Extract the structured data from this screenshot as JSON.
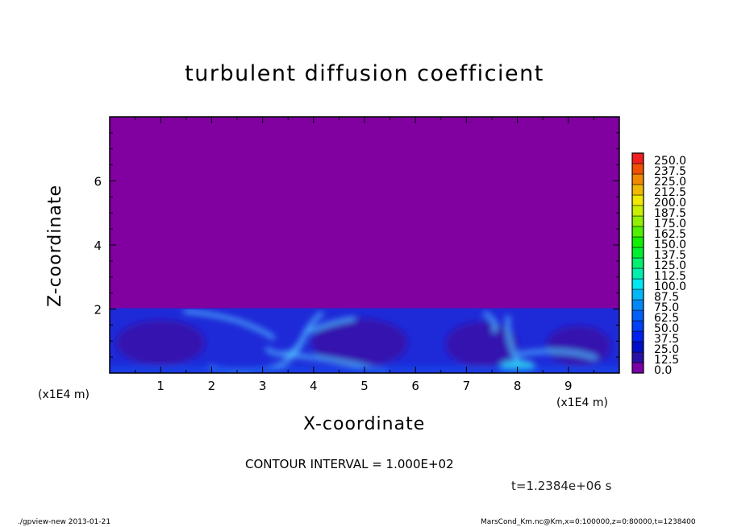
{
  "chart_data": {
    "type": "heatmap",
    "title": "turbulent diffusion coefficient",
    "xlabel": "X-coordinate",
    "ylabel": "Z-coordinate",
    "x_unit": "(x1E4 m)",
    "y_unit": "(x1E4 m)",
    "xlim": [
      0,
      10
    ],
    "ylim": [
      0,
      8
    ],
    "xticks": [
      "1",
      "2",
      "3",
      "4",
      "5",
      "6",
      "7",
      "8",
      "9"
    ],
    "yticks": [
      "2",
      "4",
      "6"
    ],
    "colorbar": {
      "levels": [
        "0.0",
        "12.5",
        "25.0",
        "37.5",
        "50.0",
        "62.5",
        "75.0",
        "87.5",
        "100.0",
        "112.5",
        "125.0",
        "137.5",
        "150.0",
        "162.5",
        "175.0",
        "187.5",
        "200.0",
        "212.5",
        "225.0",
        "237.5",
        "250.0"
      ],
      "colors": [
        "#7a00a8",
        "#2a10a8",
        "#0010c8",
        "#0020f0",
        "#0040f8",
        "#0060f8",
        "#0088f8",
        "#00b8f8",
        "#00e8f0",
        "#00f0b0",
        "#00f070",
        "#00f030",
        "#10f000",
        "#50f000",
        "#90f000",
        "#c8f000",
        "#f0e800",
        "#f0b800",
        "#f08800",
        "#f05000",
        "#f02020",
        "#f04848",
        "#f08080"
      ]
    },
    "colors": {
      "background_upper": "#8000a0",
      "turbulent_layer": "#1e2ad8",
      "plumes": "#4cb8ff"
    },
    "contour_interval": "CONTOUR INTERVAL = 1.000E+02",
    "time_label": "t=1.2384e+06 s",
    "footer_left": "./gpview-new  2013-01-21",
    "footer_right": "MarsCond_Km.nc@Km,x=0:100000,z=0:80000,t=1238400"
  }
}
